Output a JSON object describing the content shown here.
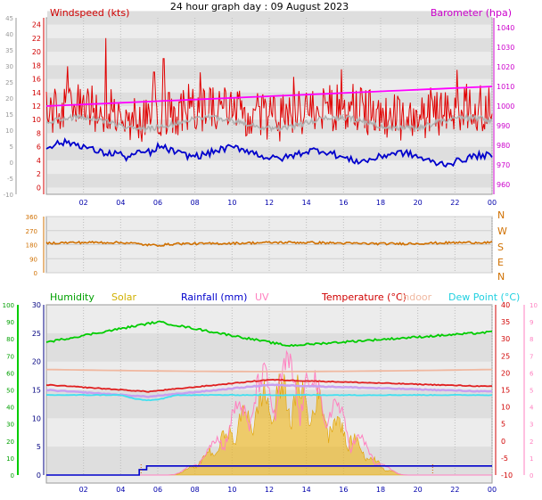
{
  "title": "24 hour graph day : 09 August 2023",
  "chart_data": [
    {
      "type": "line",
      "id": "wind-baro",
      "labels": {
        "left": "Windspeed (kts)",
        "right": "Barometer (hpa)"
      },
      "x_ticks": [
        "02",
        "04",
        "06",
        "08",
        "10",
        "12",
        "14",
        "16",
        "18",
        "20",
        "22",
        "00"
      ],
      "axes": {
        "outer_left": {
          "ticks": [
            "-10",
            "-5",
            "0",
            "5",
            "10",
            "15",
            "20",
            "25",
            "30",
            "35",
            "40",
            "45"
          ],
          "range": [
            -10,
            45
          ]
        },
        "left": {
          "ticks": [
            "0",
            "2",
            "4",
            "6",
            "8",
            "10",
            "12",
            "14",
            "16",
            "18",
            "20",
            "22",
            "24"
          ],
          "range": [
            -1,
            25
          ],
          "unit": "kts"
        },
        "right": {
          "ticks": [
            "960",
            "970",
            "980",
            "990",
            "1000",
            "1010",
            "1020",
            "1030",
            "1040"
          ],
          "range": [
            955,
            1045
          ],
          "unit": "hpa"
        }
      },
      "series": {
        "gust": {
          "color": "#e00000",
          "baseline": 11,
          "amplitude": 3.5,
          "spikes": [
            [
              3.2,
              22
            ],
            [
              5.8,
              17
            ],
            [
              6.3,
              19
            ],
            [
              6.6,
              14
            ]
          ]
        },
        "avg": {
          "color": "#b0b0b0"
        },
        "speed": {
          "color": "#0000cc",
          "start": 6,
          "end": 4
        },
        "barometer": {
          "color": "#ff00ff",
          "start": 1000,
          "end": 1010
        }
      }
    },
    {
      "type": "line",
      "id": "direction",
      "left_ticks": [
        "0",
        "90",
        "180",
        "270",
        "360"
      ],
      "right_labels": [
        "N",
        "W",
        "S",
        "E",
        "N"
      ],
      "series": {
        "direction": {
          "color": "#d07000",
          "baseline": 190
        }
      }
    },
    {
      "type": "line",
      "id": "temp-humidity",
      "legend": {
        "humidity": "Humidity",
        "solar": "Solar",
        "rainfall": "Rainfall (mm)",
        "uv": "UV",
        "temperature": "Temperature (°C)",
        "indoor": "Indoor",
        "dewpoint": "Dew Point (°C)"
      },
      "x_ticks": [
        "02",
        "04",
        "06",
        "08",
        "10",
        "12",
        "14",
        "16",
        "18",
        "20",
        "22",
        "00"
      ],
      "axes": {
        "outer_left": {
          "ticks": [
            "0",
            "10",
            "20",
            "30",
            "40",
            "50",
            "60",
            "70",
            "80",
            "90",
            "100"
          ],
          "range": [
            0,
            100
          ]
        },
        "left": {
          "ticks": [
            "0",
            "5",
            "10",
            "15",
            "20",
            "25",
            "30"
          ],
          "range": [
            0,
            30
          ]
        },
        "right": {
          "ticks": [
            "-10",
            "-5",
            "0",
            "5",
            "10",
            "15",
            "20",
            "25",
            "30",
            "35",
            "40"
          ],
          "range": [
            -10,
            40
          ]
        },
        "outer_right": {
          "ticks": [
            "0",
            "1",
            "2",
            "3",
            "4",
            "5",
            "6",
            "7",
            "8",
            "9",
            "10"
          ],
          "range": [
            0,
            10
          ]
        }
      },
      "series": {
        "humidity": {
          "color": "#00cc00",
          "start": 78,
          "peak": 90,
          "dip": 76,
          "end": 84
        },
        "indoor": {
          "color": "#f0b8a0",
          "value": 21
        },
        "temperature": {
          "color": "#e02020",
          "min": 14.5,
          "max": 18
        },
        "dewpoint": {
          "color": "#40e0f0",
          "value": 13.5
        },
        "uv": {
          "color": "#ff80c0",
          "peak": 7.5
        },
        "solar": {
          "color": "#f0b000"
        },
        "rainfall": {
          "color": "#0000cc",
          "total": 1
        }
      }
    }
  ]
}
